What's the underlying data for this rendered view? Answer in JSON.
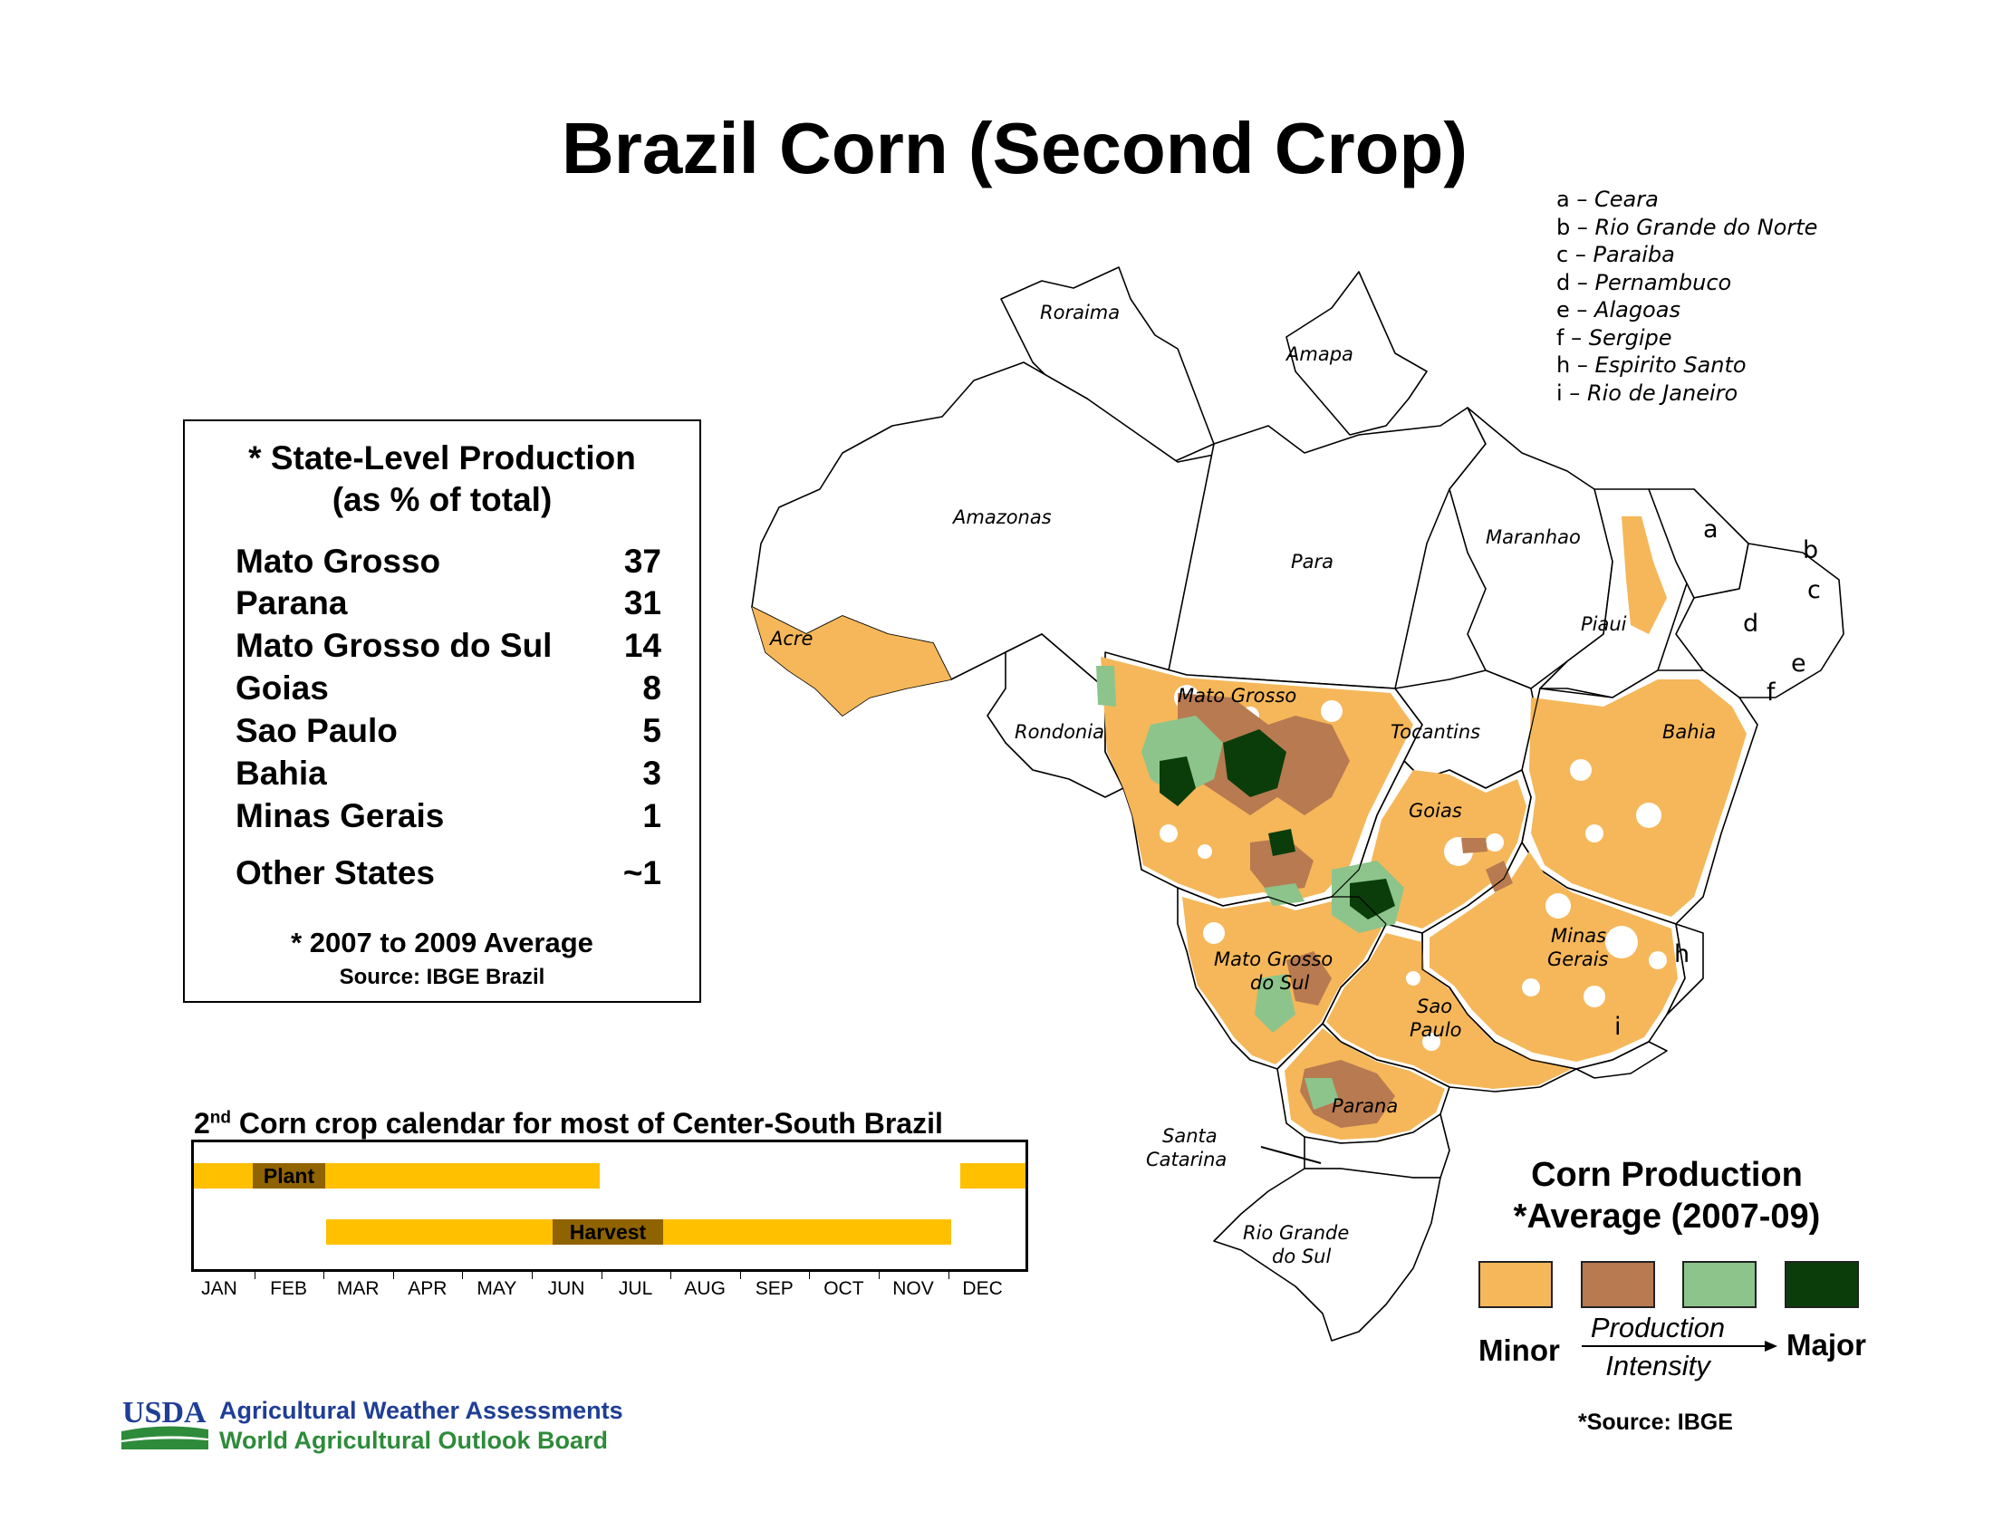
{
  "title": "Brazil Corn (Second Crop)",
  "abbreviations": [
    {
      "letter": "a",
      "name": "Ceara"
    },
    {
      "letter": "b",
      "name": "Rio Grande do Norte"
    },
    {
      "letter": "c",
      "name": "Paraiba"
    },
    {
      "letter": "d",
      "name": "Pernambuco"
    },
    {
      "letter": "e",
      "name": "Alagoas"
    },
    {
      "letter": "f",
      "name": "Sergipe"
    },
    {
      "letter": "h",
      "name": "Espirito Santo"
    },
    {
      "letter": "i",
      "name": "Rio de Janeiro"
    }
  ],
  "stats": {
    "heading_1": "* State-Level Production",
    "heading_2": "(as % of total)",
    "rows": [
      {
        "state": "Mato Grosso",
        "pct": "37"
      },
      {
        "state": "Parana",
        "pct": "31"
      },
      {
        "state": "Mato Grosso do Sul",
        "pct": "14"
      },
      {
        "state": "Goias",
        "pct": "8"
      },
      {
        "state": "Sao Paulo",
        "pct": "5"
      },
      {
        "state": "Bahia",
        "pct": "3"
      },
      {
        "state": "Minas Gerais",
        "pct": "1"
      },
      {
        "state": "Other States",
        "pct": "~1"
      }
    ],
    "footnote": "* 2007 to 2009 Average",
    "source": "Source: IBGE Brazil"
  },
  "calendar": {
    "title_pre": "2",
    "title_sup": "nd",
    "title_post": " Corn crop calendar for most of Center-South Brazil",
    "months": [
      "JAN",
      "FEB",
      "MAR",
      "APR",
      "MAY",
      "JUN",
      "JUL",
      "AUG",
      "SEP",
      "OCT",
      "NOV",
      "DEC"
    ],
    "plant_label": "Plant",
    "harvest_label": "Harvest",
    "season_color": "#FFC000",
    "activity_color": "#8F6300"
  },
  "map": {
    "state_labels": [
      "Roraima",
      "Amapa",
      "Amazonas",
      "Para",
      "Maranhao",
      "Piaui",
      "Acre",
      "Rondonia",
      "Mato Grosso",
      "Tocantins",
      "Bahia",
      "Goias",
      "Minas",
      "Gerais",
      "Mato Grosso",
      "do Sul",
      "Sao",
      "Paulo",
      "Parana",
      "Santa",
      "Catarina",
      "Rio Grande",
      "do Sul"
    ],
    "small_state_letters": [
      "a",
      "b",
      "c",
      "d",
      "e",
      "f",
      "h",
      "i"
    ]
  },
  "legend": {
    "title_1": "Corn Production",
    "title_2": "*Average (2007-09)",
    "classes": [
      {
        "name": "minor",
        "color": "#F5B75A"
      },
      {
        "name": "moderate",
        "color": "#B87A50"
      },
      {
        "name": "significant",
        "color": "#8CC48C"
      },
      {
        "name": "major",
        "color": "#0A3D0A"
      }
    ],
    "minor_label": "Minor",
    "major_label": "Major",
    "axis_label_1": "Production",
    "axis_label_2": "Intensity",
    "source": "*Source: IBGE"
  },
  "footer": {
    "logo_text": "USDA",
    "line_1": "Agricultural Weather Assessments",
    "line_2": "World Agricultural Outlook Board"
  }
}
